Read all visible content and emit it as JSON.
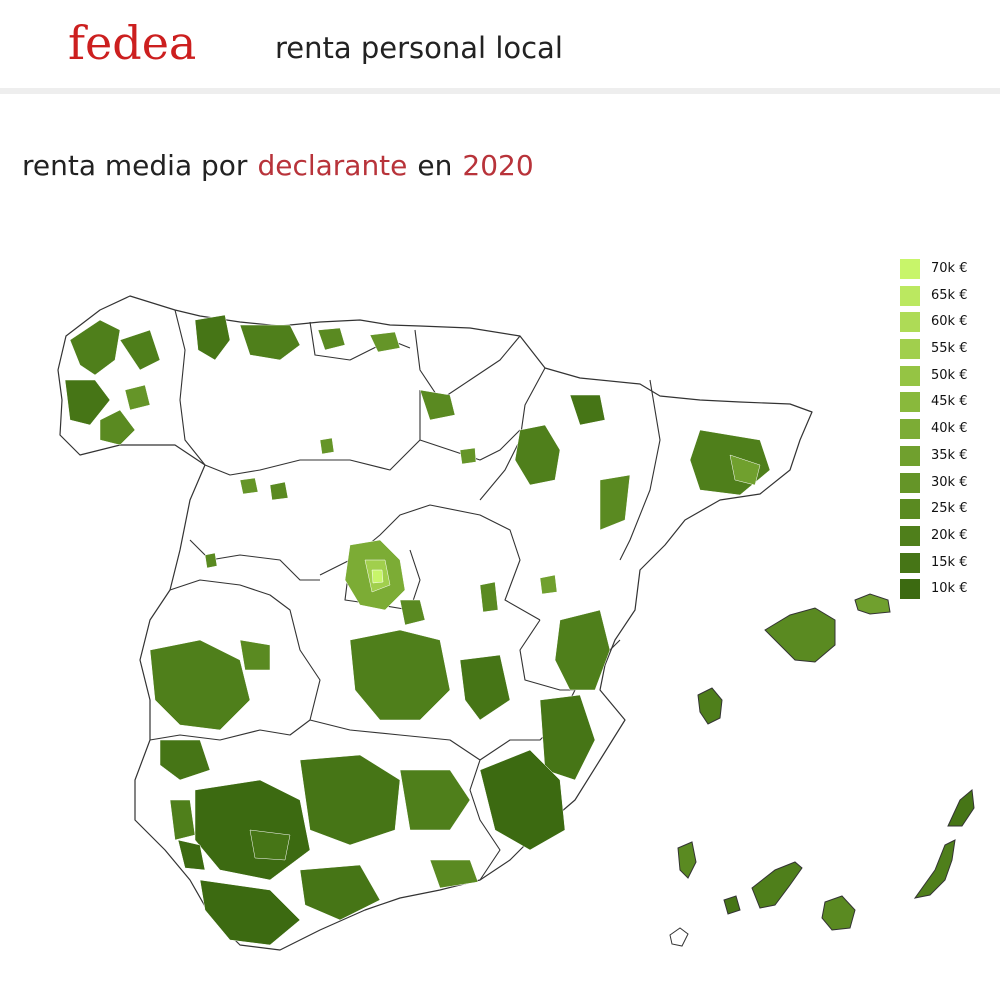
{
  "header": {
    "logo": "fedea",
    "title": "renta personal local"
  },
  "heading": {
    "prefix": "renta media por",
    "variable": "declarante",
    "connector": "en",
    "year": "2020"
  },
  "legend": {
    "items": [
      {
        "label": "70k €",
        "color": "#c8f56a"
      },
      {
        "label": "65k €",
        "color": "#bbe860"
      },
      {
        "label": "60k €",
        "color": "#aedb56"
      },
      {
        "label": "55k €",
        "color": "#a1cf4d"
      },
      {
        "label": "50k €",
        "color": "#95c444"
      },
      {
        "label": "45k €",
        "color": "#89b93c"
      },
      {
        "label": "40k €",
        "color": "#7cac35"
      },
      {
        "label": "35k €",
        "color": "#70a02e"
      },
      {
        "label": "30k €",
        "color": "#659528"
      },
      {
        "label": "25k €",
        "color": "#5a8a21"
      },
      {
        "label": "20k €",
        "color": "#4f7f1b"
      },
      {
        "label": "15k €",
        "color": "#467516"
      },
      {
        "label": "10k €",
        "color": "#3c6a11"
      }
    ]
  },
  "colors": {
    "brand": "#cc1f1f",
    "selector": "#b8333a",
    "border": "#333333"
  }
}
